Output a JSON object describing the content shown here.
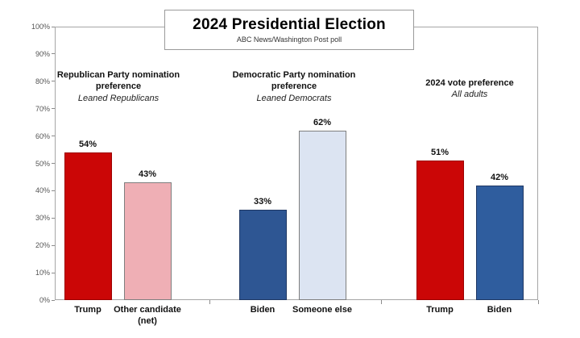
{
  "chart_data": {
    "type": "bar",
    "title": "2024 Presidential Election",
    "subtitle": "ABC News/Washington Post poll",
    "ylabel": "",
    "xlabel": "",
    "ylim": [
      0,
      100
    ],
    "ytick_step": 10,
    "ytick_suffix": "%",
    "grid": false,
    "legend_position": "none",
    "value_label_suffix": "%",
    "groups": [
      {
        "header": "Republican Party nomination preference",
        "subheader": "Leaned Republicans",
        "bars": [
          {
            "label": "Trump",
            "value": 54,
            "fill": "#CB0606",
            "border": "#9c0000"
          },
          {
            "label": "Other candidate (net)",
            "value": 43,
            "fill": "#EFAFB5",
            "border": "#7f7f7f"
          }
        ]
      },
      {
        "header": "Democratic Party nomination preference",
        "subheader": "Leaned Democrats",
        "bars": [
          {
            "label": "Biden",
            "value": 33,
            "fill": "#2E5693",
            "border": "#1f3864"
          },
          {
            "label": "Someone else",
            "value": 62,
            "fill": "#DCE4F2",
            "border": "#7f7f7f"
          }
        ]
      },
      {
        "header": "2024 vote preference",
        "subheader": "All adults",
        "bars": [
          {
            "label": "Trump",
            "value": 51,
            "fill": "#CB0606",
            "border": "#9c0000"
          },
          {
            "label": "Biden",
            "value": 42,
            "fill": "#2F5D9E",
            "border": "#1f3864"
          }
        ]
      }
    ]
  }
}
